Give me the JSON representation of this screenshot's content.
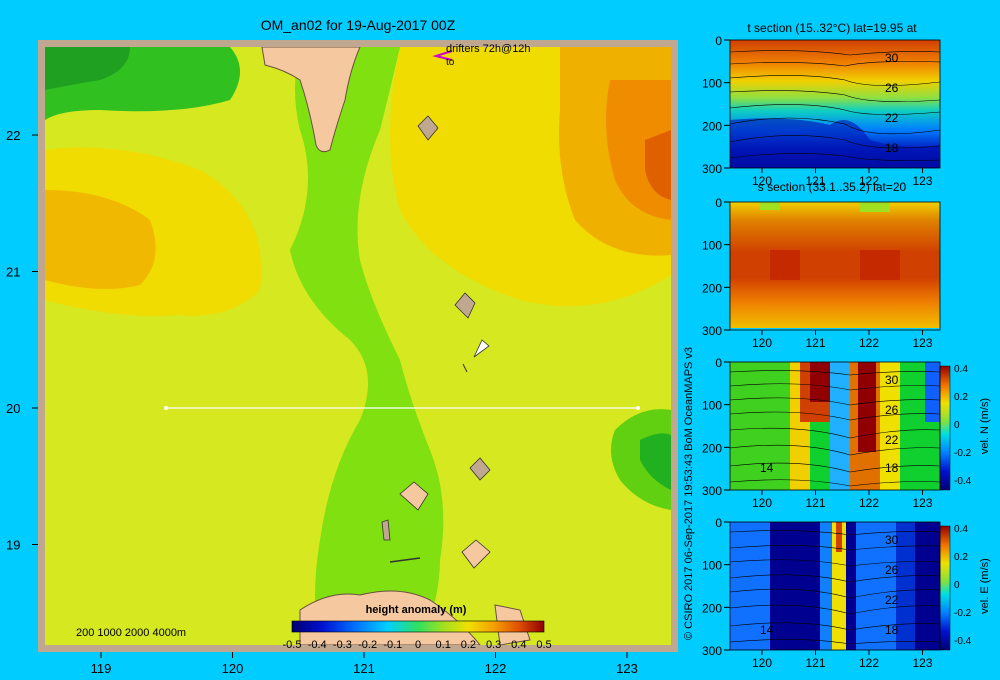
{
  "map": {
    "title": "OM_an02 for 19-Aug-2017 00Z",
    "drifters_label": "drifters 72h@12h",
    "drifters_to": "to",
    "depth_legend": "200  1000  2000  4000m",
    "colorbar_title": "height anomaly  (m)",
    "colorbar_ticks": [
      "-0.5",
      "-0.4",
      "-0.3",
      "-0.2",
      "-0.1",
      "0",
      "0.1",
      "0.2",
      "0.3",
      "0.4",
      "0.5"
    ],
    "x_ticks": [
      "119",
      "120",
      "121",
      "122",
      "123"
    ],
    "y_ticks": [
      "22",
      "21",
      "20",
      "19"
    ]
  },
  "credit": "© CSIRO 2017   06-Sep-2017 19:53:43 BoM OceanMAPS v3",
  "panels": [
    {
      "title": "t section (15..32°C) lat=19.95 at",
      "contour_labels": [
        "30",
        "26",
        "22",
        "18"
      ],
      "has_colorbar": false
    },
    {
      "title": "s section (33.1..35.2) lat=20",
      "contour_labels": [],
      "has_colorbar": false
    },
    {
      "title": "",
      "contour_labels": [
        "30",
        "26",
        "22",
        "18",
        "14"
      ],
      "has_colorbar": true,
      "cbar_label": "vel. N  (m/s)",
      "cbar_ticks": [
        "0.4",
        "0.2",
        "0",
        "-0.2",
        "-0.4"
      ]
    },
    {
      "title": "",
      "contour_labels": [
        "30",
        "26",
        "22",
        "18",
        "14"
      ],
      "has_colorbar": true,
      "cbar_label": "vel. E  (m/s)",
      "cbar_ticks": [
        "0.4",
        "0.2",
        "0",
        "-0.2",
        "-0.4"
      ]
    }
  ],
  "panel_axes": {
    "x_ticks": [
      "120",
      "121",
      "122",
      "123"
    ],
    "y_ticks": [
      "0",
      "100",
      "200",
      "300"
    ]
  },
  "chart_data": [
    {
      "type": "heatmap",
      "title": "OM_an02 for 19-Aug-2017 00Z",
      "xlim": [
        118.5,
        123.5
      ],
      "ylim": [
        18.3,
        22.7
      ],
      "colorbar": {
        "label": "height anomaly (m)",
        "range": [
          -0.5,
          0.5
        ]
      },
      "section_line": {
        "lat": 20,
        "lon_start": 119.5,
        "lon_end": 123.2
      }
    },
    {
      "type": "heatmap",
      "title": "t section (15..32°C) lat=19.95 at",
      "xlim": [
        119.5,
        123.2
      ],
      "ylim": [
        300,
        0
      ],
      "range": [
        15,
        32
      ]
    },
    {
      "type": "heatmap",
      "title": "s section (33.1..35.2) lat=20",
      "xlim": [
        119.5,
        123.2
      ],
      "ylim": [
        300,
        0
      ],
      "range": [
        33.1,
        35.2
      ]
    },
    {
      "type": "heatmap",
      "colorbar": {
        "label": "vel. N (m/s)",
        "range": [
          -0.4,
          0.4
        ]
      },
      "xlim": [
        119.5,
        123.2
      ],
      "ylim": [
        300,
        0
      ]
    },
    {
      "type": "heatmap",
      "colorbar": {
        "label": "vel. E (m/s)",
        "range": [
          -0.4,
          0.4
        ]
      },
      "xlim": [
        119.5,
        123.2
      ],
      "ylim": [
        300,
        0
      ]
    }
  ]
}
